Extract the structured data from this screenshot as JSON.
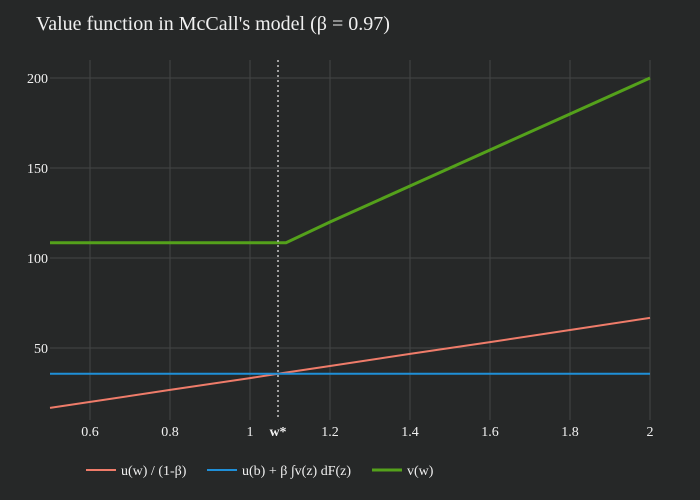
{
  "chart_data": {
    "type": "line",
    "title": "Value function in McCall's model (β = 0.97)",
    "xlabel": "",
    "ylabel": "",
    "xlim": [
      0.5,
      2.0
    ],
    "ylim": [
      10,
      210
    ],
    "x_ticks": [
      0.6,
      0.8,
      1,
      1.2,
      1.4,
      1.6,
      1.8,
      2
    ],
    "x_tick_labels": [
      "0.6",
      "0.8",
      "1",
      "1.2",
      "1.4",
      "1.6",
      "1.8",
      "2"
    ],
    "y_ticks": [
      50,
      100,
      150,
      200
    ],
    "y_tick_labels": [
      "50",
      "100",
      "150",
      "200"
    ],
    "grid": true,
    "legend_position": "bottom",
    "annotations": [
      {
        "text": "w*",
        "x": 1.07,
        "style": "vertical dotted line"
      }
    ],
    "series": [
      {
        "name": "u(w) / (1-β)",
        "color": "#ef7c6a",
        "points": [
          [
            0.5,
            16.7
          ],
          [
            0.8,
            26.7
          ],
          [
            1.0,
            33.3
          ],
          [
            1.07,
            35.7
          ],
          [
            1.2,
            40.0
          ],
          [
            1.4,
            46.7
          ],
          [
            1.6,
            53.3
          ],
          [
            1.8,
            60.0
          ],
          [
            2.0,
            66.7
          ]
        ]
      },
      {
        "name": "u(b) + β ∫v(z) dF(z)",
        "color": "#1f8fd8",
        "points": [
          [
            0.5,
            35.7
          ],
          [
            2.0,
            35.7
          ]
        ]
      },
      {
        "name": "v(w)",
        "color": "#54a11b",
        "points": [
          [
            0.5,
            108.5
          ],
          [
            1.09,
            108.5
          ],
          [
            1.2,
            120.0
          ],
          [
            1.4,
            140.0
          ],
          [
            1.6,
            160.0
          ],
          [
            1.8,
            180.0
          ],
          [
            2.0,
            200.0
          ]
        ]
      }
    ]
  }
}
